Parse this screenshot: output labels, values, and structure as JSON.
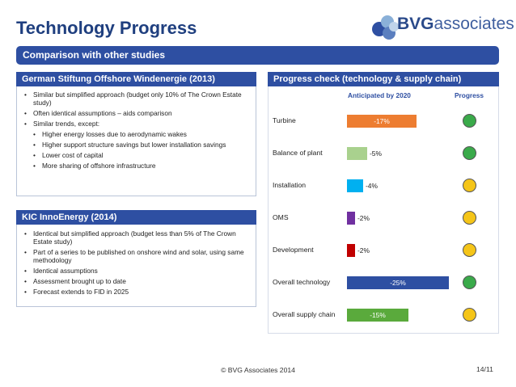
{
  "slide_title": "Technology Progress",
  "logo": {
    "bold": "BVG",
    "rest": "associates"
  },
  "banner": "Comparison with other studies",
  "german": {
    "title": "German Stiftung Offshore Windenergie (2013)",
    "items": [
      {
        "text": "Similar but simplified approach (budget only 10% of The Crown Estate study)",
        "level": 1
      },
      {
        "text": "Often identical assumptions – aids comparison",
        "level": 1
      },
      {
        "text": "Similar trends, except:",
        "level": 1
      },
      {
        "text": "Higher energy losses due to aerodynamic wakes",
        "level": 2
      },
      {
        "text": "Higher support structure savings but lower installation savings",
        "level": 2
      },
      {
        "text": "Lower cost of capital",
        "level": 2
      },
      {
        "text": "More sharing of offshore infrastructure",
        "level": 2
      }
    ]
  },
  "kic": {
    "title": "KIC InnoEnergy (2014)",
    "items": [
      {
        "text": "Identical but simplified approach (budget less than 5% of The Crown Estate study)",
        "level": 1
      },
      {
        "text": "Part of a series  to be published on onshore wind and solar, using same methodology",
        "level": 1
      },
      {
        "text": "Identical assumptions",
        "level": 1
      },
      {
        "text": "Assessment brought up to date",
        "level": 1
      },
      {
        "text": "Forecast extends to FID in 2025",
        "level": 1
      }
    ]
  },
  "progress": {
    "title": "Progress check (technology & supply chain)",
    "col_anticipated": "Anticipated by 2020",
    "col_progress": "Progress",
    "rows": [
      {
        "label": "Turbine",
        "value": -17,
        "value_label": "-17%",
        "bar_color": "#ed7d31",
        "status": "green"
      },
      {
        "label": "Balance of plant",
        "value": -5,
        "value_label": "-5%",
        "bar_color": "#a9d18e",
        "status": "green"
      },
      {
        "label": "Installation",
        "value": -4,
        "value_label": "-4%",
        "bar_color": "#00b0f0",
        "status": "amber"
      },
      {
        "label": "OMS",
        "value": -2,
        "value_label": "-2%",
        "bar_color": "#7030a0",
        "status": "amber"
      },
      {
        "label": "Development",
        "value": -2,
        "value_label": "-2%",
        "bar_color": "#c00000",
        "status": "amber"
      },
      {
        "label": "Overall technology",
        "value": -25,
        "value_label": "-25%",
        "bar_color": "#2e4fa2",
        "status": "green"
      },
      {
        "label": "Overall supply chain",
        "value": -15,
        "value_label": "-15%",
        "bar_color": "#5aaa3c",
        "status": "amber"
      }
    ],
    "status_colors": {
      "green": "#3aaa4a",
      "amber": "#f5c518"
    }
  },
  "footer": "© BVG Associates 2014",
  "page_number": "14/11"
}
